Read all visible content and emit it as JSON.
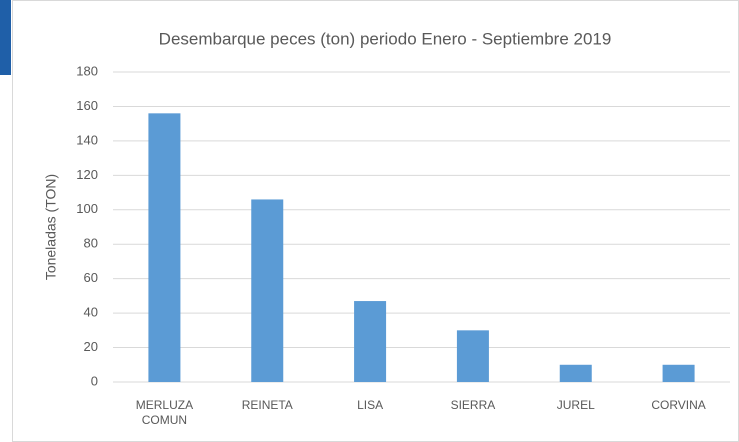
{
  "chart_data": {
    "type": "bar",
    "title": "Desembarque peces (ton) periodo Enero - Septiembre 2019",
    "y_label": "Toneladas (TON)",
    "categories": [
      "MERLUZA COMUN",
      "REINETA",
      "LISA",
      "SIERRA",
      "JUREL",
      "CORVINA"
    ],
    "values": [
      156,
      106,
      47,
      30,
      10,
      10
    ],
    "color": "#5b9bd5",
    "ylim": [
      0,
      180
    ],
    "yticks": [
      0,
      20,
      40,
      60,
      80,
      100,
      120,
      140,
      160,
      180
    ],
    "grid": true
  }
}
